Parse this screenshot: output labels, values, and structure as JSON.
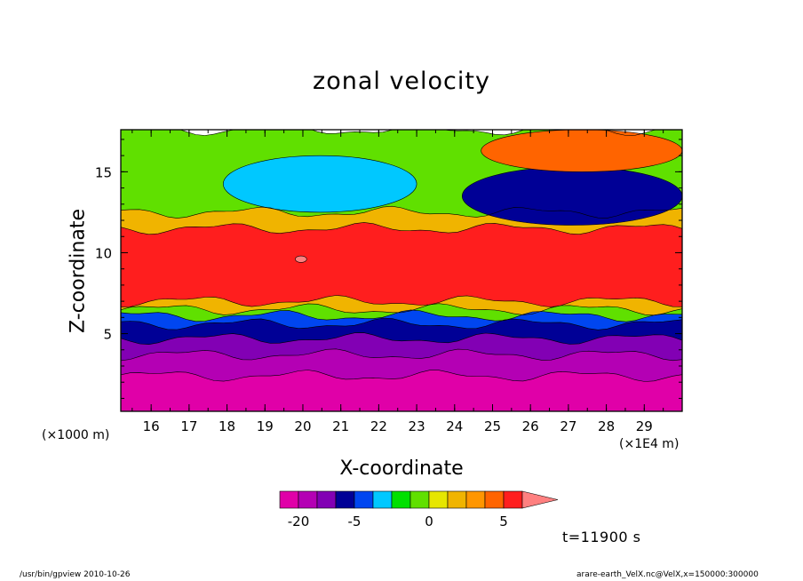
{
  "chart_data": {
    "type": "heatmap",
    "title": "zonal velocity",
    "xlabel": "X-coordinate",
    "ylabel": "Z-coordinate",
    "x_unit": "(×1E4 m)",
    "y_unit": "(×1000 m)",
    "xlim": [
      15.2,
      30.0
    ],
    "ylim": [
      0.2,
      17.6
    ],
    "x_ticks": [
      16,
      17,
      18,
      19,
      20,
      21,
      22,
      23,
      24,
      25,
      26,
      27,
      28,
      29
    ],
    "y_ticks": [
      5,
      10,
      15
    ],
    "colorbar": {
      "levels": [
        -25,
        -20,
        -15,
        -10,
        -5,
        -3,
        -2,
        -1,
        0,
        1,
        2,
        3,
        5,
        10,
        15
      ],
      "colors": [
        "#e000a8",
        "#b400b4",
        "#8200b4",
        "#000096",
        "#0046f0",
        "#00c8ff",
        "#00e000",
        "#60e000",
        "#e6e600",
        "#f0b400",
        "#ff9600",
        "#ff6400",
        "#ff1e1e",
        "#ff8080"
      ],
      "tick_labels": [
        "-20",
        "-5",
        "0",
        "5"
      ],
      "extend": "max"
    },
    "layers": [
      {
        "name": "below -20",
        "value": -22,
        "top_z": 2.4
      },
      {
        "name": "-20 to -15",
        "value": -17,
        "top_z": 3.7
      },
      {
        "name": "-15 to -10",
        "value": -12,
        "top_z": 4.7
      },
      {
        "name": "-10 to -5",
        "value": -7,
        "top_z": 5.6
      },
      {
        "name": "-5 to -3",
        "value": -4,
        "top_z": 6.1
      },
      {
        "name": "-3 to 0",
        "value": -1,
        "top_z": 6.5
      },
      {
        "name": "0 to 3",
        "value": 1,
        "top_z": 7.0
      },
      {
        "name": "3 to 10",
        "value": 6,
        "top_z": 11.5
      },
      {
        "name": "0 to 2 (upper)",
        "value": 1,
        "top_z": 12.5
      },
      {
        "name": "-2 to 0 (upper)",
        "value": -1,
        "top_z": 17.6
      }
    ],
    "features": [
      {
        "name": "upper cyan core",
        "value": -3,
        "x_range": [
          17.9,
          23.0
        ],
        "z_range": [
          12.5,
          16.0
        ]
      },
      {
        "name": "upper blue core",
        "value": -6,
        "x_range": [
          24.2,
          30.0
        ],
        "z_range": [
          11.7,
          15.3
        ]
      },
      {
        "name": "upper positive",
        "value": 3,
        "x_range": [
          24.7,
          30.0
        ],
        "z_range": [
          15.0,
          17.6
        ]
      },
      {
        "name": "red spot",
        "value": 12,
        "x_range": [
          19.8,
          20.1
        ],
        "z_range": [
          9.4,
          9.8
        ]
      }
    ],
    "time_label": "t=11900 s"
  },
  "footer": {
    "left": "/usr/bin/gpview   2010-10-26",
    "right": "arare-earth_VelX.nc@VelX,x=150000:300000"
  }
}
